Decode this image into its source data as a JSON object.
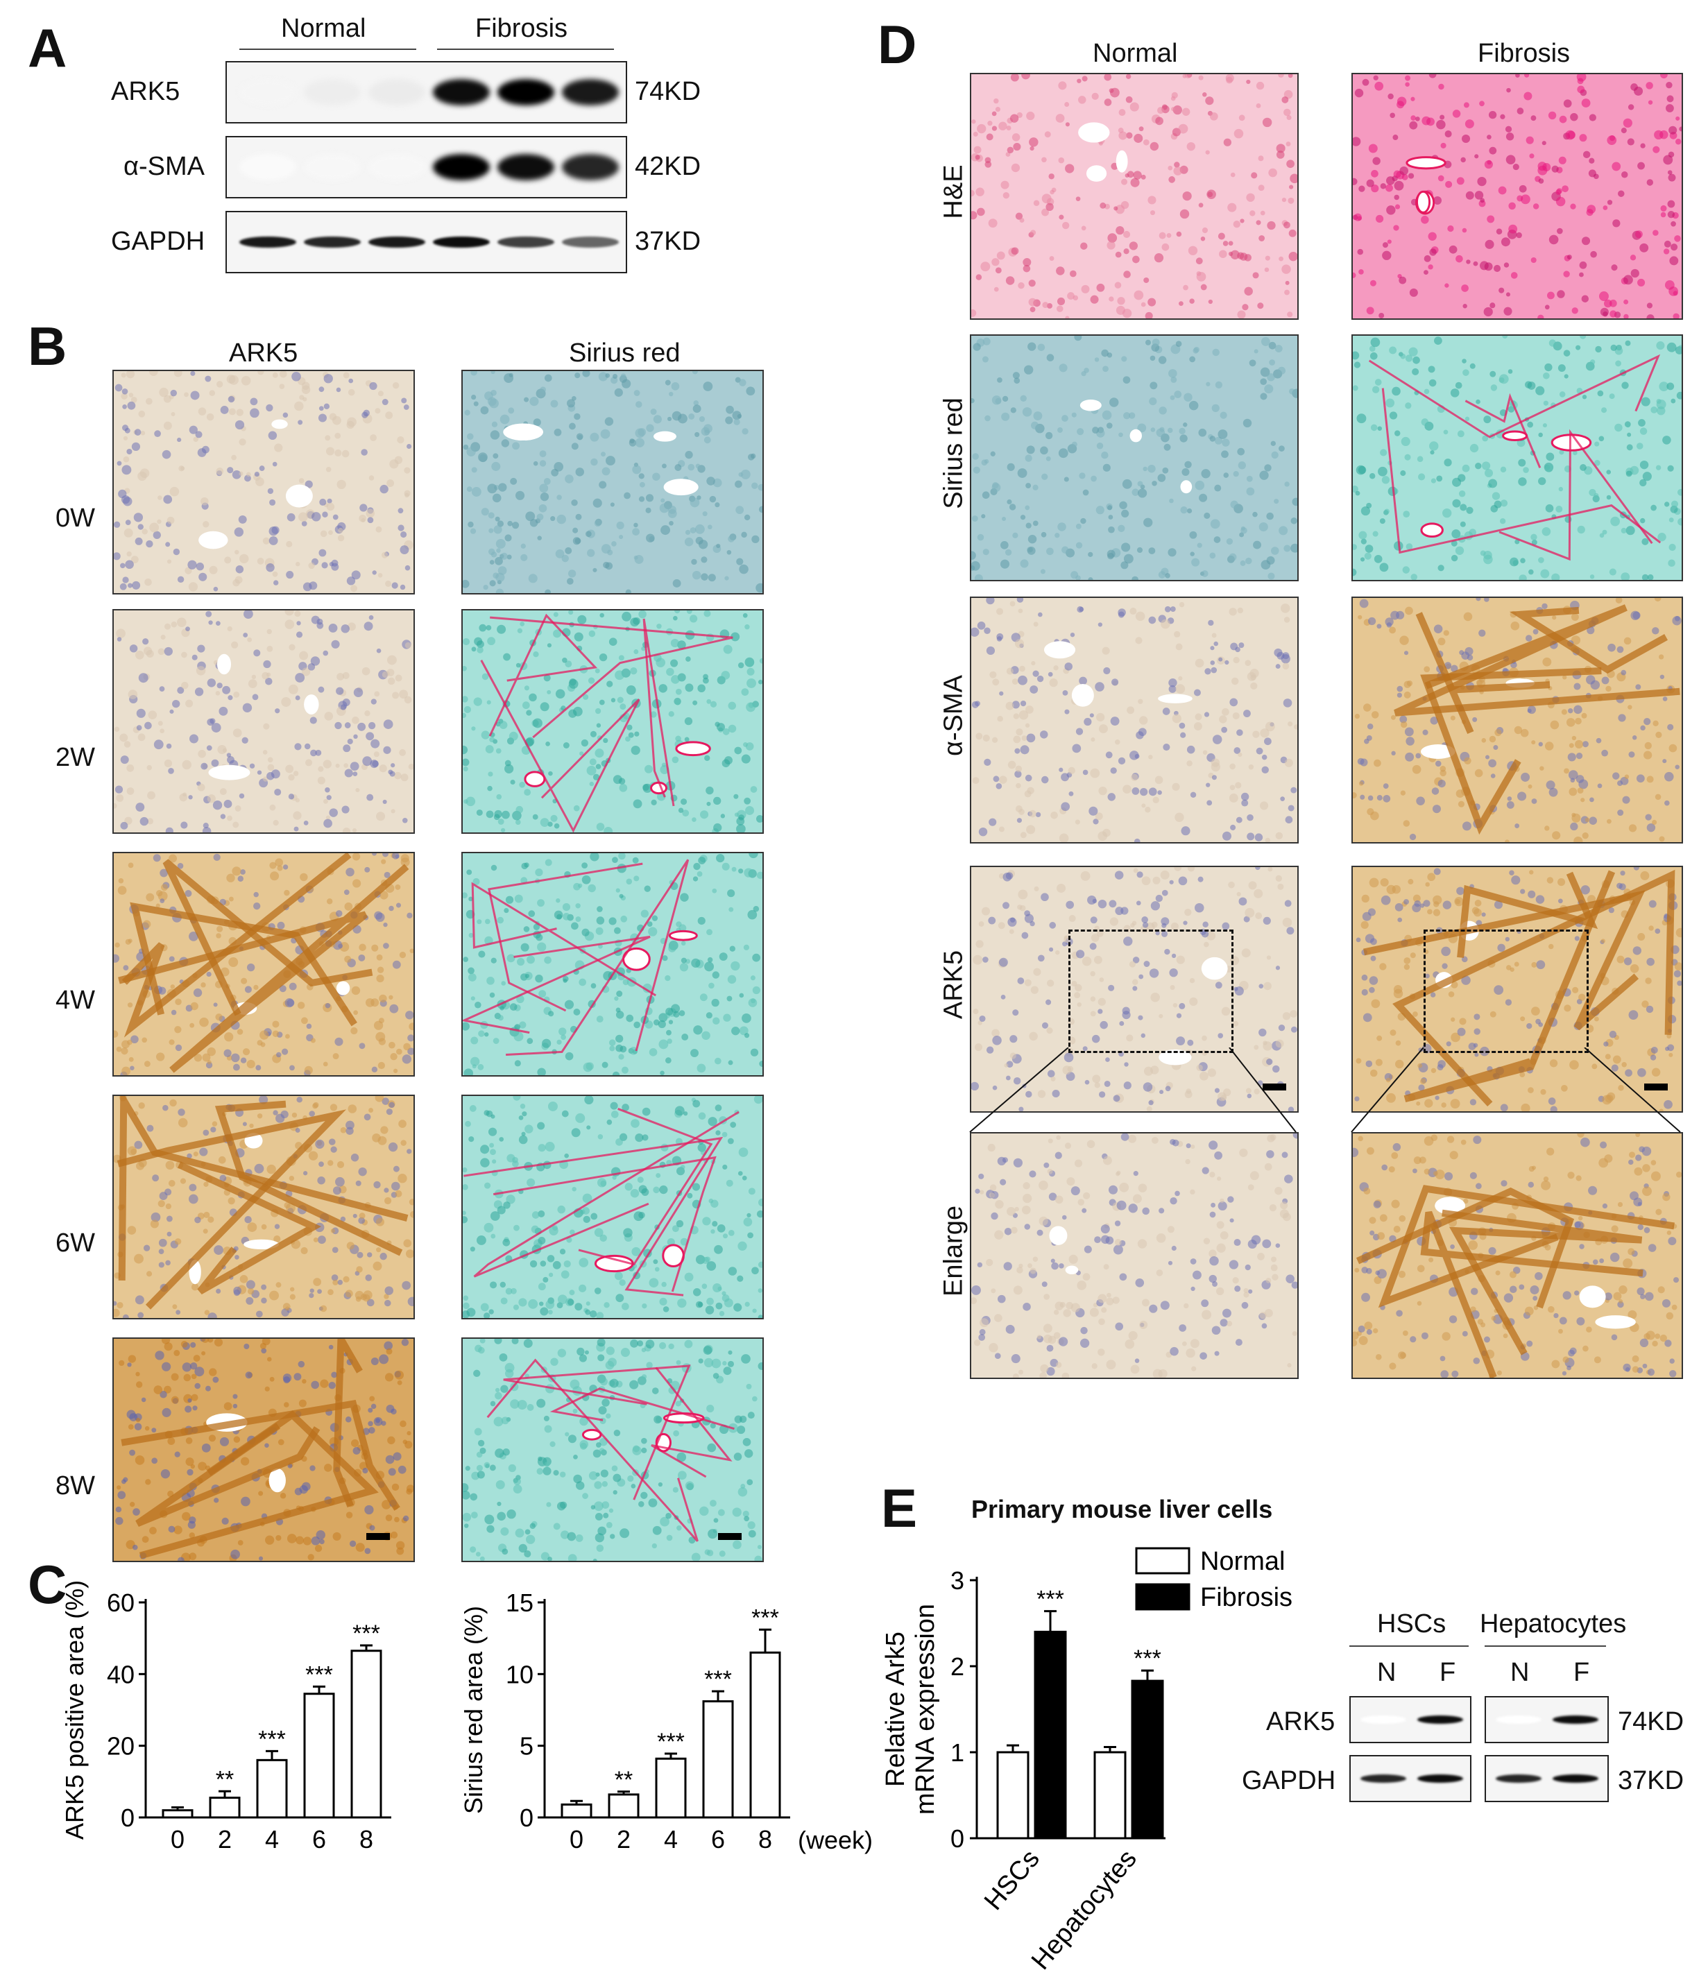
{
  "panel_labels": {
    "A": "A",
    "B": "B",
    "C": "C",
    "D": "D",
    "E": "E"
  },
  "panel_a": {
    "groups": [
      "Normal",
      "Fibrosis"
    ],
    "rows": [
      {
        "name": "ARK5",
        "size": "74KD"
      },
      {
        "name": "α-SMA",
        "size": "42KD"
      },
      {
        "name": "GAPDH",
        "size": "37KD"
      }
    ]
  },
  "panel_b": {
    "col_titles": [
      "ARK5",
      "Sirius red"
    ],
    "row_labels": [
      "0W",
      "2W",
      "4W",
      "6W",
      "8W"
    ]
  },
  "panel_c": {
    "time_unit": "(week)",
    "left_ylabel": "ARK5 positive area (%)",
    "right_ylabel": "Sirius red area (%)"
  },
  "panel_d": {
    "col_titles": [
      "Normal",
      "Fibrosis"
    ],
    "row_labels": [
      "H&E",
      "Sirius red",
      "α-SMA",
      "ARK5",
      "Enlarge"
    ]
  },
  "panel_e": {
    "title": "Primary mouse liver cells",
    "legend": [
      "Normal",
      "Fibrosis"
    ],
    "ylabel_line1": "Relative Ark5",
    "ylabel_line2": "mRNA expression",
    "blot_groups": [
      "HSCs",
      "Hepatocytes"
    ],
    "lane_labels": [
      "N",
      "F",
      "N",
      "F"
    ],
    "blot_rows": [
      {
        "name": "ARK5",
        "size": "74KD"
      },
      {
        "name": "GAPDH",
        "size": "37KD"
      }
    ]
  },
  "chart_data": [
    {
      "type": "bar",
      "panel": "C-left",
      "title": "",
      "xlabel": "(week)",
      "ylabel": "ARK5 positive area (%)",
      "categories": [
        "0",
        "2",
        "4",
        "6",
        "8"
      ],
      "values": [
        2,
        5.5,
        16,
        34.5,
        46.5
      ],
      "errors": [
        0.8,
        1.8,
        2.5,
        2,
        1.5
      ],
      "significance": [
        "",
        "**",
        "***",
        "***",
        "***"
      ],
      "ylim": [
        0,
        60
      ],
      "yticks": [
        0,
        20,
        40,
        60
      ]
    },
    {
      "type": "bar",
      "panel": "C-right",
      "title": "",
      "xlabel": "(week)",
      "ylabel": "Sirius red area (%)",
      "categories": [
        "0",
        "2",
        "4",
        "6",
        "8"
      ],
      "values": [
        0.9,
        1.6,
        4.1,
        8.1,
        11.5
      ],
      "errors": [
        0.25,
        0.2,
        0.35,
        0.7,
        1.6
      ],
      "significance": [
        "",
        "**",
        "***",
        "***",
        "***"
      ],
      "ylim": [
        0,
        15
      ],
      "yticks": [
        0,
        5,
        10,
        15
      ]
    },
    {
      "type": "bar",
      "panel": "E",
      "title": "Primary mouse liver cells",
      "ylabel": "Relative Ark5 mRNA expression",
      "categories": [
        "HSCs",
        "Hepatocytes"
      ],
      "series": [
        {
          "name": "Normal",
          "values": [
            1,
            1
          ],
          "errors": [
            0.08,
            0.06
          ],
          "color": "#ffffff"
        },
        {
          "name": "Fibrosis",
          "values": [
            2.4,
            1.83
          ],
          "errors": [
            0.24,
            0.12
          ],
          "color": "#000000"
        }
      ],
      "significance": [
        "***",
        "***"
      ],
      "ylim": [
        0,
        3
      ],
      "yticks": [
        0,
        1,
        2,
        3
      ]
    }
  ],
  "colors": {
    "he_normal": "#e96b8d",
    "he_fibrosis": "#e8187d",
    "sirius_normal": "#7fb8c2",
    "sirius_fibrosis": "#5cc0b6",
    "ihc_base": "#d9c6a8",
    "ihc_brown": "#c98a2f",
    "nuclei": "#5a63b0",
    "collagen": "#e6195f"
  }
}
